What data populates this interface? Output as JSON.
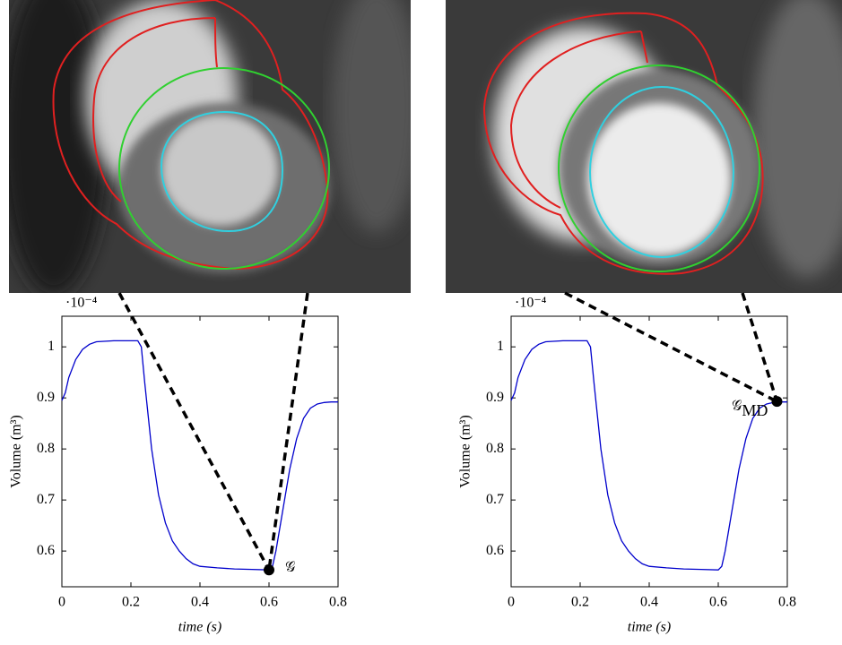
{
  "chart_data": [
    {
      "type": "line",
      "y_label": "Volume (m³)",
      "x_label": "time (s)",
      "multiplier": "·10⁻⁴",
      "x": [
        0,
        0.01,
        0.02,
        0.04,
        0.06,
        0.08,
        0.1,
        0.15,
        0.2,
        0.22,
        0.23,
        0.24,
        0.26,
        0.28,
        0.3,
        0.32,
        0.34,
        0.36,
        0.38,
        0.4,
        0.45,
        0.5,
        0.55,
        0.6,
        0.61,
        0.62,
        0.64,
        0.66,
        0.68,
        0.7,
        0.72,
        0.74,
        0.76,
        0.78,
        0.8
      ],
      "values": [
        0.895,
        0.91,
        0.94,
        0.975,
        0.995,
        1.005,
        1.01,
        1.012,
        1.012,
        1.012,
        1.0,
        0.93,
        0.8,
        0.71,
        0.655,
        0.62,
        0.6,
        0.585,
        0.575,
        0.57,
        0.567,
        0.565,
        0.564,
        0.563,
        0.57,
        0.6,
        0.68,
        0.76,
        0.82,
        0.86,
        0.88,
        0.888,
        0.891,
        0.892,
        0.892
      ],
      "color": "#0000cc",
      "xlim": [
        0,
        0.8
      ],
      "xticks": [
        0,
        0.2,
        0.4,
        0.6,
        0.8
      ],
      "ylim": [
        0.53,
        1.06
      ],
      "yticks": [
        0.6,
        0.7,
        0.8,
        0.9,
        1
      ],
      "marker": {
        "x": 0.6,
        "y": 0.563,
        "label": "𝒢"
      }
    },
    {
      "type": "line",
      "y_label": "Volume (m³)",
      "x_label": "time (s)",
      "multiplier": "·10⁻⁴",
      "x": [
        0,
        0.01,
        0.02,
        0.04,
        0.06,
        0.08,
        0.1,
        0.15,
        0.2,
        0.22,
        0.23,
        0.24,
        0.26,
        0.28,
        0.3,
        0.32,
        0.34,
        0.36,
        0.38,
        0.4,
        0.45,
        0.5,
        0.55,
        0.6,
        0.61,
        0.62,
        0.64,
        0.66,
        0.68,
        0.7,
        0.72,
        0.74,
        0.76,
        0.78,
        0.8
      ],
      "values": [
        0.895,
        0.91,
        0.94,
        0.975,
        0.995,
        1.005,
        1.01,
        1.012,
        1.012,
        1.012,
        1.0,
        0.93,
        0.8,
        0.71,
        0.655,
        0.62,
        0.6,
        0.585,
        0.575,
        0.57,
        0.567,
        0.565,
        0.564,
        0.563,
        0.57,
        0.6,
        0.68,
        0.76,
        0.82,
        0.86,
        0.88,
        0.888,
        0.891,
        0.892,
        0.892
      ],
      "color": "#0000cc",
      "xlim": [
        0,
        0.8
      ],
      "xticks": [
        0,
        0.2,
        0.4,
        0.6,
        0.8
      ],
      "ylim": [
        0.53,
        1.06
      ],
      "yticks": [
        0.6,
        0.7,
        0.8,
        0.9,
        1
      ],
      "marker": {
        "x": 0.77,
        "y": 0.893,
        "label": "𝒢",
        "label_sub": "MD"
      }
    }
  ]
}
